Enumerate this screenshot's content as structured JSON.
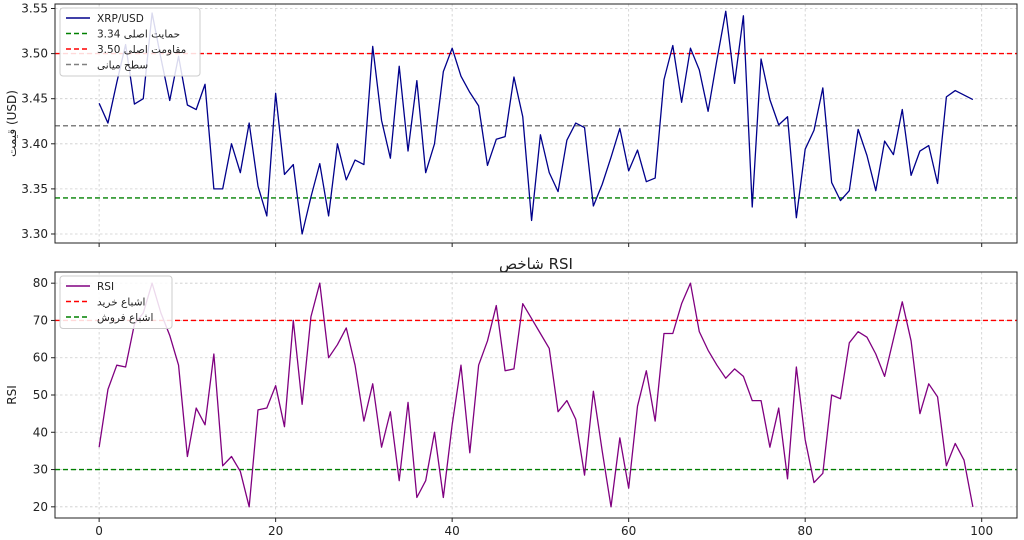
{
  "chart_data": [
    {
      "type": "line",
      "title": "",
      "xlabel": "",
      "ylabel": "قیمت (USD)",
      "xlim": [
        -5,
        104
      ],
      "ylim": [
        3.29,
        3.555
      ],
      "x_ticks": [
        0,
        20,
        40,
        60,
        80,
        100
      ],
      "y_ticks": [
        3.3,
        3.35,
        3.4,
        3.45,
        3.5,
        3.55
      ],
      "y_tick_labels": [
        "3.30",
        "3.35",
        "3.40",
        "3.45",
        "3.50",
        "3.55"
      ],
      "grid": true,
      "legend_position": "top-left",
      "series": [
        {
          "name": "XRP/USD",
          "color": "#00008b",
          "x_start": 0,
          "values": [
            3.445,
            3.423,
            3.468,
            3.51,
            3.444,
            3.45,
            3.545,
            3.495,
            3.448,
            3.497,
            3.443,
            3.438,
            3.466,
            3.35,
            3.35,
            3.4,
            3.368,
            3.423,
            3.353,
            3.32,
            3.456,
            3.366,
            3.377,
            3.3,
            3.341,
            3.378,
            3.32,
            3.4,
            3.36,
            3.382,
            3.377,
            3.508,
            3.426,
            3.384,
            3.486,
            3.392,
            3.47,
            3.368,
            3.4,
            3.48,
            3.506,
            3.475,
            3.457,
            3.442,
            3.376,
            3.405,
            3.408,
            3.474,
            3.43,
            3.315,
            3.41,
            3.368,
            3.347,
            3.404,
            3.423,
            3.418,
            3.331,
            3.355,
            3.385,
            3.417,
            3.37,
            3.393,
            3.358,
            3.362,
            3.471,
            3.509,
            3.446,
            3.506,
            3.482,
            3.436,
            3.493,
            3.547,
            3.467,
            3.542,
            3.33,
            3.494,
            3.449,
            3.421,
            3.43,
            3.318,
            3.394,
            3.415,
            3.462,
            3.357,
            3.337,
            3.348,
            3.416,
            3.387,
            3.348,
            3.403,
            3.388,
            3.438,
            3.365,
            3.392,
            3.398,
            3.356,
            3.452,
            3.459,
            3.454,
            3.449
          ]
        }
      ],
      "reference_lines": [
        {
          "name": "حمایت اصلی 3.34",
          "value": 3.34,
          "color": "#008000"
        },
        {
          "name": "مقاومت اصلی 3.50",
          "value": 3.5,
          "color": "#ff0000"
        },
        {
          "name": "سطح میانی",
          "value": 3.42,
          "color": "#808080"
        }
      ]
    },
    {
      "type": "line",
      "title": "شاخص RSI",
      "xlabel": "",
      "ylabel": "RSI",
      "xlim": [
        -5,
        104
      ],
      "ylim": [
        17,
        83
      ],
      "x_ticks": [
        0,
        20,
        40,
        60,
        80,
        100
      ],
      "x_tick_labels": [
        "0",
        "20",
        "40",
        "60",
        "80",
        "100"
      ],
      "y_ticks": [
        20,
        30,
        40,
        50,
        60,
        70,
        80
      ],
      "y_tick_labels": [
        "20",
        "30",
        "40",
        "50",
        "60",
        "70",
        "80"
      ],
      "grid": true,
      "legend_position": "top-left",
      "series": [
        {
          "name": "RSI",
          "color": "#800080",
          "x_start": 0,
          "values": [
            36,
            51.5,
            58,
            57.5,
            69,
            72,
            80,
            72,
            66,
            58,
            33.5,
            46.5,
            42,
            61,
            31,
            33.5,
            29.5,
            20,
            46,
            46.5,
            52.5,
            41.5,
            70,
            47.5,
            71,
            80,
            60,
            63.5,
            68,
            58,
            43,
            53,
            36,
            45.5,
            27,
            48,
            22.5,
            27,
            40,
            22.5,
            42,
            58,
            34.5,
            58,
            64.5,
            74,
            56.5,
            57,
            74.5,
            70.5,
            66.5,
            62.5,
            45.5,
            48.5,
            43.5,
            28.5,
            51,
            35,
            20,
            38.5,
            25,
            47,
            56.5,
            43,
            66.5,
            66.5,
            74.5,
            80,
            67,
            62,
            58,
            54.5,
            57,
            55,
            48.5,
            48.5,
            36,
            46.5,
            27.5,
            57.5,
            38,
            26.5,
            29,
            50,
            49,
            64,
            67,
            65.5,
            61,
            55,
            65,
            75,
            64.5,
            45,
            53,
            49.5,
            31,
            37,
            32.5,
            20
          ]
        }
      ],
      "reference_lines": [
        {
          "name": "اشباع خرید",
          "value": 70,
          "color": "#ff0000"
        },
        {
          "name": "اشباع فروش",
          "value": 30,
          "color": "#008000"
        }
      ]
    }
  ]
}
